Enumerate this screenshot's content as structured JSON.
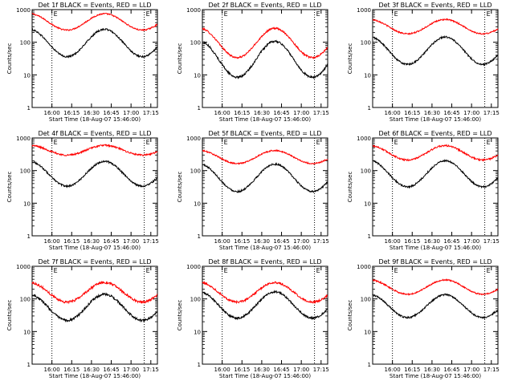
{
  "chart_data": [
    {
      "type": "line",
      "title": "Det 1f BLACK = Events, RED = LLD",
      "xlabel": "Start Time (18-Aug-07 15:46:00)",
      "ylabel": "Counts/sec",
      "markers": [
        "E",
        "E"
      ],
      "red": {
        "color": "#ff0000",
        "base": 420,
        "amp": 0.25,
        "noise": 0.02
      },
      "black": {
        "color": "#000000",
        "base": 95,
        "amp": 0.42,
        "noise": 0.025
      }
    },
    {
      "type": "line",
      "title": "Det 2f BLACK = Events, RED = LLD",
      "xlabel": "Start Time (18-Aug-07 15:46:00)",
      "ylabel": "Counts/sec",
      "markers": [
        "E",
        "E"
      ],
      "red": {
        "color": "#ff0000",
        "base": 95,
        "amp": 0.45,
        "noise": 0.025
      },
      "black": {
        "color": "#000000",
        "base": 30,
        "amp": 0.55,
        "noise": 0.03
      }
    },
    {
      "type": "line",
      "title": "Det 3f BLACK = Events, RED = LLD",
      "xlabel": "Start Time (18-Aug-07 15:46:00)",
      "ylabel": "Counts/sec",
      "markers": [
        "E",
        "E"
      ],
      "red": {
        "color": "#ff0000",
        "base": 300,
        "amp": 0.22,
        "noise": 0.02
      },
      "black": {
        "color": "#000000",
        "base": 55,
        "amp": 0.42,
        "noise": 0.025
      }
    },
    {
      "type": "line",
      "title": "Det 4f BLACK = Events, RED = LLD",
      "xlabel": "Start Time (18-Aug-07 15:46:00)",
      "ylabel": "Counts/sec",
      "markers": [
        "E",
        "E"
      ],
      "red": {
        "color": "#ff0000",
        "base": 420,
        "amp": 0.15,
        "noise": 0.025
      },
      "black": {
        "color": "#000000",
        "base": 80,
        "amp": 0.38,
        "noise": 0.025
      }
    },
    {
      "type": "line",
      "title": "Det 5f BLACK = Events, RED = LLD",
      "xlabel": "Start Time (18-Aug-07 15:46:00)",
      "ylabel": "Counts/sec",
      "markers": [
        "E",
        "E"
      ],
      "red": {
        "color": "#ff0000",
        "base": 260,
        "amp": 0.2,
        "noise": 0.02
      },
      "black": {
        "color": "#000000",
        "base": 60,
        "amp": 0.42,
        "noise": 0.025
      }
    },
    {
      "type": "line",
      "title": "Det 6f BLACK = Events, RED = LLD",
      "xlabel": "Start Time (18-Aug-07 15:46:00)",
      "ylabel": "Counts/sec",
      "markers": [
        "E",
        "E"
      ],
      "red": {
        "color": "#ff0000",
        "base": 350,
        "amp": 0.22,
        "noise": 0.025
      },
      "black": {
        "color": "#000000",
        "base": 80,
        "amp": 0.4,
        "noise": 0.025
      }
    },
    {
      "type": "line",
      "title": "Det 7f BLACK = Events, RED = LLD",
      "xlabel": "Start Time (18-Aug-07 15:46:00)",
      "ylabel": "Counts/sec",
      "markers": [
        "E",
        "E"
      ],
      "red": {
        "color": "#ff0000",
        "base": 160,
        "amp": 0.3,
        "noise": 0.035
      },
      "black": {
        "color": "#000000",
        "base": 55,
        "amp": 0.4,
        "noise": 0.035
      }
    },
    {
      "type": "line",
      "title": "Det 8f BLACK = Events, RED = LLD",
      "xlabel": "Start Time (18-Aug-07 15:46:00)",
      "ylabel": "Counts/sec",
      "markers": [
        "E",
        "E"
      ],
      "red": {
        "color": "#ff0000",
        "base": 160,
        "amp": 0.3,
        "noise": 0.03
      },
      "black": {
        "color": "#000000",
        "base": 65,
        "amp": 0.4,
        "noise": 0.03
      }
    },
    {
      "type": "line",
      "title": "Det 9f BLACK = Events, RED = LLD",
      "xlabel": "Start Time (18-Aug-07 15:46:00)",
      "ylabel": "Counts/sec",
      "markers": [
        "E",
        "E"
      ],
      "red": {
        "color": "#ff0000",
        "base": 230,
        "amp": 0.22,
        "noise": 0.02
      },
      "black": {
        "color": "#000000",
        "base": 60,
        "amp": 0.35,
        "noise": 0.025
      }
    }
  ],
  "axes": {
    "x_min": 15.75,
    "x_max": 17.3333,
    "x_ticks": [
      16.0,
      16.25,
      16.5,
      16.75,
      17.0,
      17.25
    ],
    "x_tick_labels": [
      "16:00",
      "16:15",
      "16:30",
      "16:45",
      "17:00",
      "17:15"
    ],
    "x_dotted_lines": [
      16.0,
      17.1667
    ],
    "y_scale": "log",
    "y_range": [
      1,
      1000
    ],
    "y_ticks": [
      1,
      10,
      100,
      1000
    ],
    "y_tick_labels": [
      "1",
      "10",
      "100",
      "1000"
    ]
  }
}
